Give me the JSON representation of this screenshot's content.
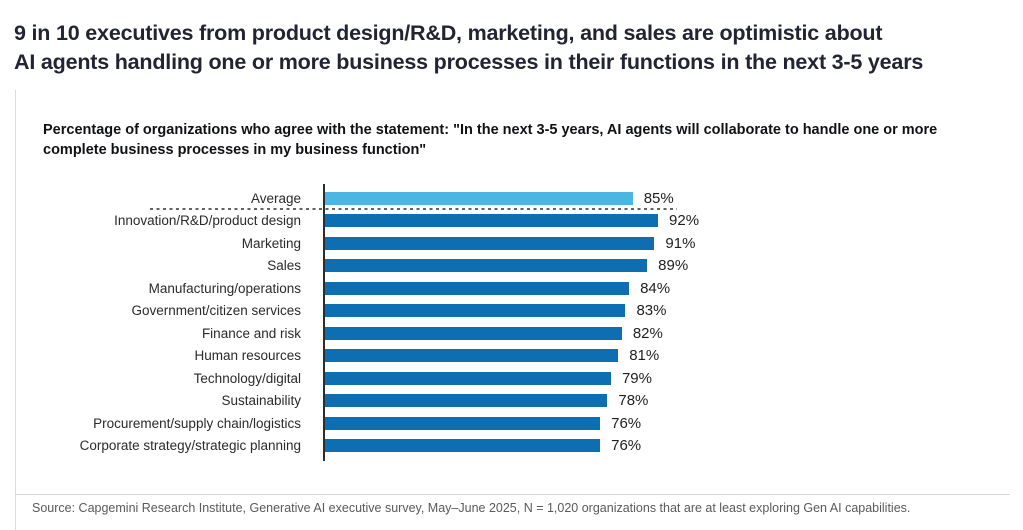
{
  "header": {
    "title_line1": "9 in 10 executives from product design/R&D, marketing, and sales are optimistic about",
    "title_line2": "AI agents handling one or more business processes in their functions in the next 3-5 years"
  },
  "panel": {
    "subtitle_line1": "Percentage of organizations who agree with the statement: \"In the next 3-5 years, AI agents will collaborate to handle one or more",
    "subtitle_line2": "complete business processes in my business function\""
  },
  "footer": {
    "source": "Source: Capgemini Research Institute, Generative AI executive survey, May–June 2025, N = 1,020 organizations that are at least exploring Gen AI capabilities."
  },
  "colors": {
    "highlight_bar": "#4DB5E2",
    "bar": "#0D6EB2",
    "axis": "#2D2D2D",
    "title_text": "#232433"
  },
  "chart_data": {
    "type": "bar",
    "orientation": "horizontal",
    "title": "9 in 10 executives from product design/R&D, marketing, and sales are optimistic about AI agents handling one or more business processes in their functions in the next 3-5 years",
    "subtitle": "Percentage of organizations who agree with the statement: \"In the next 3-5 years, AI agents will collaborate to handle one or more complete business processes in my business function\"",
    "categories": [
      "Average",
      "Innovation/R&D/product design",
      "Marketing",
      "Sales",
      "Manufacturing/operations",
      "Government/citizen services",
      "Finance and risk",
      "Human resources",
      "Technology/digital",
      "Sustainability",
      "Procurement/supply chain/logistics",
      "Corporate strategy/strategic planning"
    ],
    "values": [
      85,
      92,
      91,
      89,
      84,
      83,
      82,
      81,
      79,
      78,
      76,
      76
    ],
    "value_suffix": "%",
    "xlim": [
      0,
      100
    ],
    "highlight_index": 0,
    "separator_after_index": 0,
    "grid": "off",
    "legend": "none"
  }
}
